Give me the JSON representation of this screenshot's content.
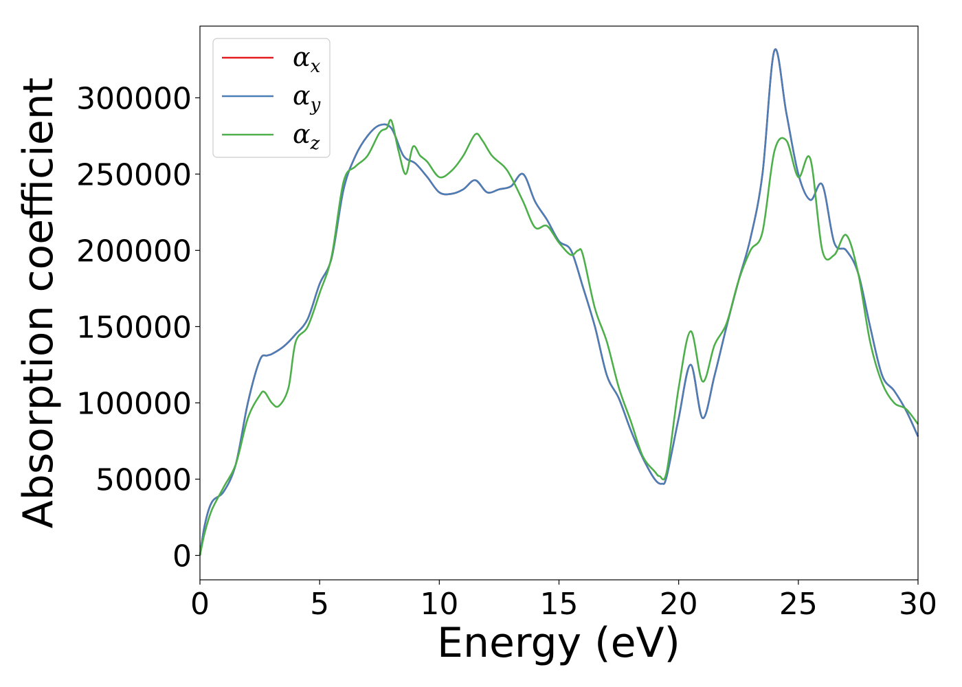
{
  "chart_data": {
    "type": "line",
    "title": "",
    "xlabel": "Energy (eV)",
    "ylabel": "Absorption coefficient",
    "xlim": [
      0,
      30
    ],
    "ylim": [
      -16000,
      347000
    ],
    "xticks": [
      0,
      5,
      10,
      15,
      20,
      25,
      30
    ],
    "yticks": [
      0,
      50000,
      100000,
      150000,
      200000,
      250000,
      300000
    ],
    "grid": false,
    "legend_position": "top-left",
    "series": [
      {
        "name": "αx",
        "label_base": "α",
        "label_sub": "x",
        "color": "#e41a1c",
        "x": [
          0,
          0.2,
          0.5,
          1,
          1.5,
          2,
          2.5,
          2.8,
          3,
          3.5,
          4,
          4.5,
          5,
          5.5,
          6,
          6.5,
          7,
          7.5,
          8,
          8.5,
          9,
          9.5,
          10,
          10.5,
          11,
          11.5,
          12,
          12.5,
          13,
          13.5,
          14,
          14.5,
          15,
          15.5,
          16,
          16.5,
          17,
          17.5,
          18,
          18.5,
          19,
          19.3,
          19.5,
          20,
          20.5,
          21,
          21.5,
          22,
          22.5,
          23,
          23.5,
          24,
          24.5,
          25,
          25.5,
          26,
          26.5,
          27,
          27.5,
          28,
          28.5,
          29,
          29.5,
          30
        ],
        "y": [
          0,
          20000,
          35000,
          42000,
          60000,
          100000,
          128000,
          131000,
          132000,
          137000,
          145000,
          155000,
          178000,
          195000,
          240000,
          262000,
          275000,
          282000,
          280000,
          262000,
          257000,
          248000,
          238000,
          237000,
          240000,
          246000,
          238000,
          240000,
          242000,
          250000,
          232000,
          220000,
          206000,
          200000,
          176000,
          150000,
          118000,
          103000,
          82000,
          64000,
          50000,
          47000,
          52000,
          90000,
          125000,
          90000,
          118000,
          150000,
          180000,
          208000,
          250000,
          331000,
          290000,
          250000,
          233000,
          243000,
          205000,
          200000,
          185000,
          150000,
          118000,
          108000,
          95000,
          78000
        ]
      },
      {
        "name": "αy",
        "label_base": "α",
        "label_sub": "y",
        "color": "#4a7eb7",
        "x": [
          0,
          0.2,
          0.5,
          1,
          1.5,
          2,
          2.5,
          2.8,
          3,
          3.5,
          4,
          4.5,
          5,
          5.5,
          6,
          6.5,
          7,
          7.5,
          8,
          8.5,
          9,
          9.5,
          10,
          10.5,
          11,
          11.5,
          12,
          12.5,
          13,
          13.5,
          14,
          14.5,
          15,
          15.5,
          16,
          16.5,
          17,
          17.5,
          18,
          18.5,
          19,
          19.3,
          19.5,
          20,
          20.5,
          21,
          21.5,
          22,
          22.5,
          23,
          23.5,
          24,
          24.5,
          25,
          25.5,
          26,
          26.5,
          27,
          27.5,
          28,
          28.5,
          29,
          29.5,
          30
        ],
        "y": [
          0,
          20000,
          35000,
          42000,
          60000,
          100000,
          128000,
          131000,
          132000,
          137000,
          145000,
          155000,
          178000,
          195000,
          240000,
          262000,
          275000,
          282000,
          280000,
          262000,
          257000,
          248000,
          238000,
          237000,
          240000,
          246000,
          238000,
          240000,
          242000,
          250000,
          232000,
          220000,
          206000,
          200000,
          176000,
          150000,
          118000,
          103000,
          82000,
          64000,
          50000,
          47000,
          52000,
          90000,
          125000,
          90000,
          118000,
          150000,
          180000,
          208000,
          250000,
          331000,
          290000,
          250000,
          233000,
          243000,
          205000,
          200000,
          185000,
          150000,
          118000,
          108000,
          95000,
          78000
        ]
      },
      {
        "name": "αz",
        "label_base": "α",
        "label_sub": "z",
        "color": "#4daf4a",
        "x": [
          0,
          0.2,
          0.5,
          1,
          1.5,
          2,
          2.5,
          2.7,
          3,
          3.3,
          3.7,
          4,
          4.5,
          5,
          5.5,
          6,
          6.5,
          7,
          7.5,
          7.8,
          8,
          8.3,
          8.6,
          8.9,
          9.2,
          9.5,
          10,
          10.5,
          11,
          11.5,
          11.8,
          12.2,
          12.7,
          13,
          13.5,
          14,
          14.5,
          15,
          15.5,
          15.8,
          16,
          16.5,
          17,
          17.5,
          18,
          18.5,
          19,
          19.2,
          19.5,
          20,
          20.5,
          21,
          21.5,
          22,
          22.5,
          23,
          23.5,
          24,
          24.5,
          25,
          25.5,
          26,
          26.5,
          27,
          27.5,
          28,
          28.5,
          29,
          29.5,
          30
        ],
        "y": [
          0,
          15000,
          30000,
          45000,
          60000,
          90000,
          105000,
          107000,
          100000,
          98000,
          110000,
          140000,
          150000,
          172000,
          196000,
          245000,
          255000,
          262000,
          277000,
          280000,
          285000,
          265000,
          250000,
          268000,
          262000,
          258000,
          248000,
          252000,
          262000,
          276000,
          272000,
          262000,
          255000,
          248000,
          232000,
          215000,
          216000,
          205000,
          197000,
          200000,
          197000,
          162000,
          140000,
          110000,
          88000,
          65000,
          55000,
          52000,
          55000,
          110000,
          147000,
          114000,
          138000,
          152000,
          180000,
          200000,
          212000,
          265000,
          272000,
          248000,
          260000,
          200000,
          197000,
          210000,
          185000,
          140000,
          113000,
          100000,
          96000,
          86000
        ]
      }
    ]
  }
}
